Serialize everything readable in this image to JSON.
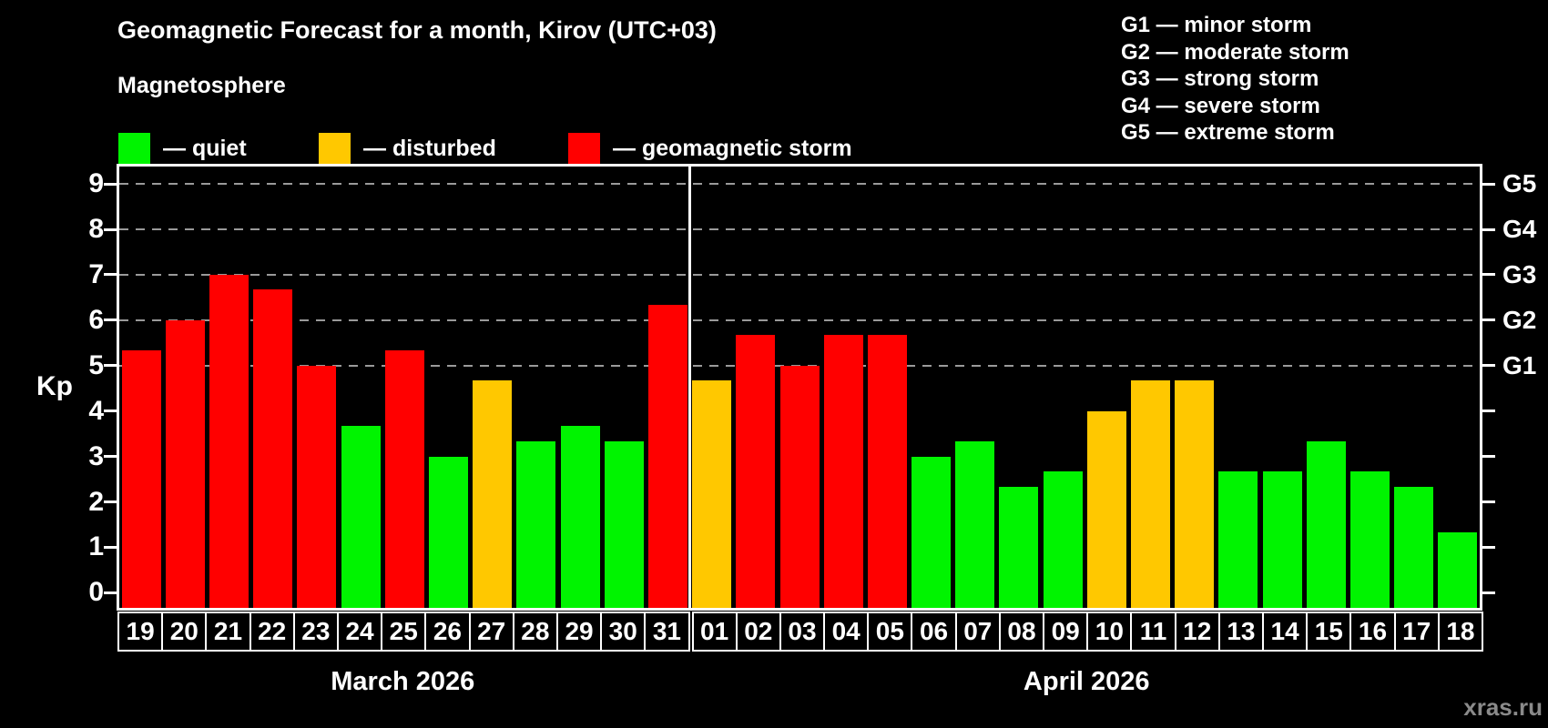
{
  "header": {
    "title": "Geomagnetic Forecast for a month, Kirov (UTC+03)",
    "subtitle": "Magnetosphere"
  },
  "legend": {
    "items": [
      {
        "key": "quiet",
        "label": "— quiet",
        "color": "#00f400"
      },
      {
        "key": "disturbed",
        "label": "— disturbed",
        "color": "#ffc800"
      },
      {
        "key": "storm",
        "label": "— geomagnetic storm",
        "color": "#ff0000"
      }
    ]
  },
  "g_legend": [
    "G1 — minor storm",
    "G2 — moderate storm",
    "G3 — strong storm",
    "G4 — severe storm",
    "G5 — extreme storm"
  ],
  "watermark": "xras.ru",
  "chart_data": {
    "type": "bar",
    "title": "Geomagnetic Forecast for a month, Kirov (UTC+03)",
    "ylabel": "Kp",
    "ylim": [
      -0.33,
      9.38
    ],
    "yticks": [
      0,
      1,
      2,
      3,
      4,
      5,
      6,
      7,
      8,
      9
    ],
    "gridlines_kp": [
      5,
      6,
      7,
      8,
      9
    ],
    "grid": "dashed horizontal at storm levels only",
    "right_axis": [
      {
        "label": "G1",
        "kp": 5
      },
      {
        "label": "G2",
        "kp": 6
      },
      {
        "label": "G3",
        "kp": 7
      },
      {
        "label": "G4",
        "kp": 8
      },
      {
        "label": "G5",
        "kp": 9
      }
    ],
    "status_colors": {
      "quiet": "#00f400",
      "disturbed": "#ffc800",
      "storm": "#ff0000"
    },
    "sections": [
      {
        "month": "March 2026",
        "days": [
          {
            "date": "19",
            "kp": 5.33,
            "status": "storm"
          },
          {
            "date": "20",
            "kp": 6.0,
            "status": "storm"
          },
          {
            "date": "21",
            "kp": 7.0,
            "status": "storm"
          },
          {
            "date": "22",
            "kp": 6.67,
            "status": "storm"
          },
          {
            "date": "23",
            "kp": 5.0,
            "status": "storm"
          },
          {
            "date": "24",
            "kp": 3.67,
            "status": "quiet"
          },
          {
            "date": "25",
            "kp": 5.33,
            "status": "storm"
          },
          {
            "date": "26",
            "kp": 3.0,
            "status": "quiet"
          },
          {
            "date": "27",
            "kp": 4.67,
            "status": "disturbed"
          },
          {
            "date": "28",
            "kp": 3.33,
            "status": "quiet"
          },
          {
            "date": "29",
            "kp": 3.67,
            "status": "quiet"
          },
          {
            "date": "30",
            "kp": 3.33,
            "status": "quiet"
          },
          {
            "date": "31",
            "kp": 6.33,
            "status": "storm"
          }
        ]
      },
      {
        "month": "April 2026",
        "days": [
          {
            "date": "01",
            "kp": 4.67,
            "status": "disturbed"
          },
          {
            "date": "02",
            "kp": 5.67,
            "status": "storm"
          },
          {
            "date": "03",
            "kp": 5.0,
            "status": "storm"
          },
          {
            "date": "04",
            "kp": 5.67,
            "status": "storm"
          },
          {
            "date": "05",
            "kp": 5.67,
            "status": "storm"
          },
          {
            "date": "06",
            "kp": 3.0,
            "status": "quiet"
          },
          {
            "date": "07",
            "kp": 3.33,
            "status": "quiet"
          },
          {
            "date": "08",
            "kp": 2.33,
            "status": "quiet"
          },
          {
            "date": "09",
            "kp": 2.67,
            "status": "quiet"
          },
          {
            "date": "10",
            "kp": 4.0,
            "status": "disturbed"
          },
          {
            "date": "11",
            "kp": 4.67,
            "status": "disturbed"
          },
          {
            "date": "12",
            "kp": 4.67,
            "status": "disturbed"
          },
          {
            "date": "13",
            "kp": 2.67,
            "status": "quiet"
          },
          {
            "date": "14",
            "kp": 2.67,
            "status": "quiet"
          },
          {
            "date": "15",
            "kp": 3.33,
            "status": "quiet"
          },
          {
            "date": "16",
            "kp": 2.67,
            "status": "quiet"
          },
          {
            "date": "17",
            "kp": 2.33,
            "status": "quiet"
          },
          {
            "date": "18",
            "kp": 1.33,
            "status": "quiet"
          }
        ]
      }
    ]
  }
}
